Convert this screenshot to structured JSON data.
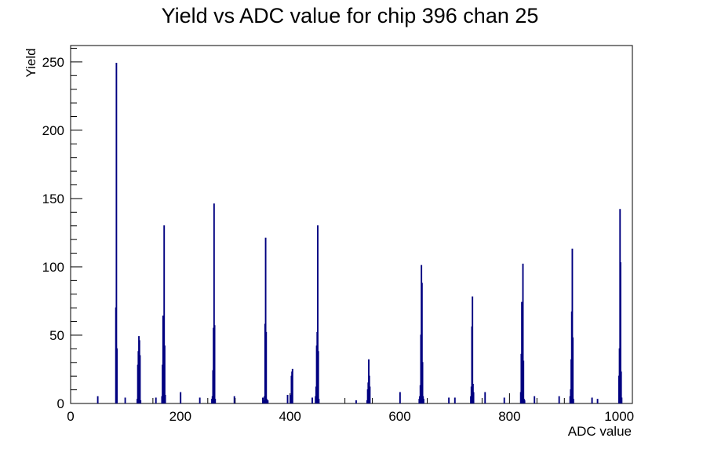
{
  "chart_data": {
    "type": "bar",
    "title": "Yield vs ADC value for chip 396 chan 25",
    "xlabel": "ADC value",
    "ylabel": "Yield",
    "xlim": [
      0,
      1024
    ],
    "ylim": [
      0,
      262
    ],
    "x_ticks": [
      0,
      200,
      400,
      600,
      800,
      1000
    ],
    "y_ticks": [
      0,
      50,
      100,
      150,
      200,
      250
    ],
    "grid": false,
    "legend": "none",
    "line_color": "#000080",
    "series": [
      {
        "x": [
          49,
          82,
          83,
          84,
          99,
          121,
          122,
          123,
          124,
          125,
          126,
          127,
          155,
          166,
          167,
          168,
          169,
          170,
          171,
          172,
          200,
          235,
          257,
          258,
          259,
          260,
          261,
          262,
          263,
          298,
          350,
          352,
          353,
          354,
          355,
          356,
          357,
          359,
          395,
          400,
          401,
          402,
          403,
          404,
          440,
          446,
          447,
          448,
          449,
          450,
          451,
          452,
          520,
          540,
          541,
          542,
          543,
          544,
          545,
          600,
          635,
          636,
          637,
          638,
          639,
          640,
          641,
          642,
          643,
          689,
          700,
          729,
          730,
          731,
          732,
          733,
          734,
          755,
          790,
          820,
          821,
          822,
          823,
          824,
          825,
          826,
          827,
          845,
          890,
          910,
          911,
          912,
          913,
          914,
          915,
          916,
          950,
          960,
          999,
          1000,
          1001,
          1002,
          1003,
          1004
        ],
        "values": [
          5,
          70,
          249,
          40,
          4,
          3,
          28,
          38,
          49,
          46,
          35,
          2,
          4,
          5,
          28,
          64,
          52,
          130,
          42,
          6,
          8,
          4,
          3,
          5,
          24,
          55,
          146,
          57,
          3,
          5,
          4,
          2,
          5,
          58,
          121,
          52,
          3,
          2,
          6,
          6,
          2,
          20,
          23,
          25,
          4,
          5,
          12,
          42,
          52,
          130,
          38,
          3,
          2,
          2,
          10,
          15,
          32,
          20,
          12,
          8,
          3,
          5,
          13,
          50,
          101,
          88,
          30,
          5,
          3,
          4,
          4,
          5,
          12,
          56,
          78,
          14,
          8,
          8,
          4,
          8,
          36,
          74,
          60,
          102,
          31,
          3,
          2,
          5,
          5,
          5,
          10,
          32,
          67,
          113,
          48,
          3,
          4,
          3,
          20,
          40,
          142,
          103,
          23,
          4
        ]
      }
    ]
  }
}
